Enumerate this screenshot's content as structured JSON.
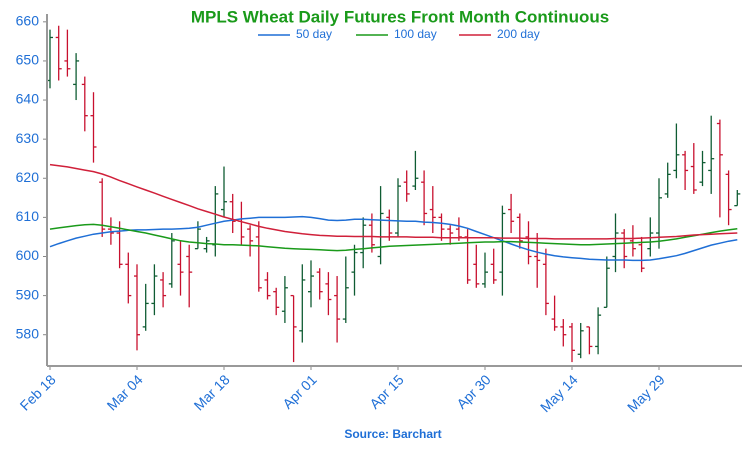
{
  "chart_data": {
    "type": "ohlc",
    "title": "MPLS Wheat Daily Futures Front Month Continuous",
    "source": "Source: Barchart",
    "categories": [
      "Feb 18",
      null,
      null,
      null,
      null,
      null,
      null,
      null,
      null,
      null,
      "Mar 04",
      null,
      null,
      null,
      null,
      null,
      null,
      null,
      null,
      null,
      "Mar 18",
      null,
      null,
      null,
      null,
      null,
      null,
      null,
      null,
      null,
      "Apr 01",
      null,
      null,
      null,
      null,
      null,
      null,
      null,
      null,
      null,
      "Apr 15",
      null,
      null,
      null,
      null,
      null,
      null,
      null,
      null,
      null,
      "Apr 30",
      null,
      null,
      null,
      null,
      null,
      null,
      null,
      null,
      null,
      "May 14",
      null,
      null,
      null,
      null,
      null,
      null,
      null,
      null,
      null,
      "May 29",
      null,
      null,
      null,
      null,
      null,
      null,
      null,
      null,
      null
    ],
    "open": [
      645,
      656,
      650,
      644,
      644,
      636,
      619,
      607,
      606,
      598,
      595,
      582,
      588,
      594,
      593,
      598,
      600,
      602,
      602,
      603,
      612,
      614,
      609,
      607,
      605,
      594,
      591,
      586,
      590,
      581,
      591,
      596,
      593,
      590,
      584,
      596,
      601,
      608,
      600,
      610,
      606,
      619,
      618,
      619,
      612,
      610,
      607,
      607,
      605,
      598,
      593,
      598,
      596,
      612,
      610,
      605,
      600,
      598,
      584,
      582,
      582,
      575,
      582,
      577,
      587,
      600,
      606,
      604,
      603,
      602,
      606,
      616,
      622,
      626,
      623,
      619,
      622,
      634,
      621,
      613
    ],
    "high": [
      658,
      659,
      658,
      652,
      646,
      642,
      620,
      610,
      609,
      601,
      598,
      593,
      598,
      596,
      606,
      604,
      603,
      609,
      605,
      618,
      623,
      616,
      614,
      608,
      609,
      596,
      592,
      595,
      590,
      598,
      599,
      597,
      596,
      595,
      600,
      603,
      610,
      611,
      618,
      612,
      620,
      622,
      627,
      622,
      618,
      611,
      608,
      610,
      607,
      603,
      601,
      602,
      613,
      616,
      611,
      609,
      606,
      602,
      590,
      584,
      583,
      583,
      582,
      587,
      600,
      611,
      607,
      608,
      605,
      610,
      620,
      624,
      634,
      627,
      629,
      627,
      636,
      635,
      622,
      617
    ],
    "low": [
      643,
      645,
      646,
      640,
      632,
      624,
      605,
      603,
      597,
      588,
      576,
      581,
      585,
      587,
      592,
      590,
      587,
      602,
      601,
      600,
      610,
      606,
      603,
      600,
      591,
      589,
      585,
      583,
      573,
      578,
      587,
      589,
      585,
      578,
      583,
      590,
      597,
      601,
      598,
      604,
      605,
      614,
      617,
      608,
      606,
      604,
      603,
      604,
      593,
      592,
      592,
      593,
      590,
      606,
      602,
      598,
      592,
      585,
      581,
      577,
      573,
      574,
      575,
      575,
      587,
      596,
      597,
      600,
      596,
      600,
      602,
      615,
      620,
      617,
      616,
      618,
      616,
      610,
      608,
      613
    ],
    "close": [
      656,
      648,
      648,
      650,
      636,
      628,
      607,
      606,
      598,
      590,
      580,
      588,
      595,
      590,
      604,
      596,
      596,
      607,
      604,
      616,
      614,
      609,
      605,
      604,
      592,
      590,
      587,
      592,
      582,
      594,
      595,
      591,
      589,
      584,
      592,
      601,
      608,
      603,
      611,
      606,
      618,
      616,
      620,
      611,
      610,
      607,
      606,
      605,
      594,
      593,
      596,
      594,
      611,
      609,
      604,
      600,
      599,
      588,
      582,
      580,
      576,
      581,
      577,
      585,
      597,
      606,
      600,
      602,
      597,
      606,
      615,
      621,
      626,
      622,
      617,
      624,
      625,
      626,
      612,
      616
    ],
    "up_color": "#0f5c33",
    "down_color": "#c8102e",
    "series": [
      {
        "name": "50 day",
        "color": "#1f6fd6",
        "values": [
          602.5,
          603.3,
          604,
          604.7,
          605.2,
          605.7,
          606,
          606.3,
          606.5,
          606.7,
          606.8,
          606.8,
          606.9,
          607,
          607,
          607.1,
          607.2,
          607.5,
          608,
          608.5,
          609,
          609.3,
          609.6,
          609.8,
          610,
          610,
          610,
          610,
          610.1,
          610.2,
          610,
          609.7,
          609.3,
          609.2,
          609.3,
          609.5,
          609.5,
          609.4,
          609.3,
          609.2,
          609.1,
          609,
          609,
          608.8,
          608.7,
          608.5,
          608.2,
          607.8,
          607.2,
          606.4,
          605.6,
          604.8,
          604,
          603.2,
          602.4,
          601.7,
          601.1,
          600.6,
          600.2,
          599.9,
          599.7,
          599.5,
          599.3,
          599.2,
          599.1,
          599.1,
          599.1,
          599,
          599,
          599.1,
          599.4,
          599.8,
          600.2,
          600.8,
          601.5,
          602.2,
          602.9,
          603.4,
          603.9,
          604.3
        ]
      },
      {
        "name": "100 day",
        "color": "#1a9a1a",
        "values": [
          607,
          607.3,
          607.6,
          607.9,
          608.1,
          608.2,
          608,
          607.6,
          607.2,
          606.8,
          606.4,
          606,
          605.5,
          605,
          604.5,
          604,
          603.7,
          603.5,
          603.3,
          603.2,
          603,
          603,
          602.9,
          602.8,
          602.7,
          602.5,
          602.3,
          602.1,
          602,
          601.9,
          601.8,
          601.7,
          601.6,
          601.5,
          601.6,
          601.8,
          602,
          602.2,
          602.4,
          602.6,
          602.7,
          602.8,
          602.9,
          603,
          603.1,
          603.2,
          603.3,
          603.4,
          603.5,
          603.6,
          603.7,
          603.7,
          603.8,
          603.8,
          603.7,
          603.6,
          603.5,
          603.4,
          603.3,
          603.2,
          603.1,
          603,
          603,
          603.1,
          603.2,
          603.3,
          603.4,
          603.5,
          603.6,
          603.7,
          603.9,
          604.2,
          604.5,
          604.9,
          605.3,
          605.7,
          606.1,
          606.5,
          606.8,
          607.1
        ]
      },
      {
        "name": "200 day",
        "color": "#d0203a",
        "values": [
          623.5,
          623.2,
          622.9,
          622.5,
          622.1,
          621.7,
          621.1,
          620.3,
          619.4,
          618.6,
          617.8,
          617,
          616.2,
          615.4,
          614.6,
          613.8,
          613,
          612.2,
          611.5,
          610.8,
          610.1,
          609.5,
          608.9,
          608.3,
          607.7,
          607.2,
          606.8,
          606.4,
          606.1,
          605.8,
          605.6,
          605.4,
          605.3,
          605.2,
          605.2,
          605.1,
          605.1,
          605.1,
          605,
          605,
          605,
          605,
          604.9,
          604.9,
          604.9,
          604.8,
          604.8,
          604.8,
          604.8,
          604.8,
          604.8,
          604.8,
          604.7,
          604.7,
          604.7,
          604.6,
          604.6,
          604.6,
          604.5,
          604.5,
          604.5,
          604.5,
          604.5,
          604.5,
          604.5,
          604.6,
          604.6,
          604.6,
          604.7,
          604.8,
          604.9,
          605,
          605.1,
          605.3,
          605.5,
          605.6,
          605.7,
          605.8,
          605.9,
          606
        ]
      }
    ],
    "ylim": [
      572,
      662
    ],
    "yticks": [
      580,
      590,
      600,
      610,
      620,
      630,
      640,
      650,
      660
    ],
    "legend": "top",
    "text_color": "#1f6fd6",
    "title_color": "#1a9a1a"
  }
}
